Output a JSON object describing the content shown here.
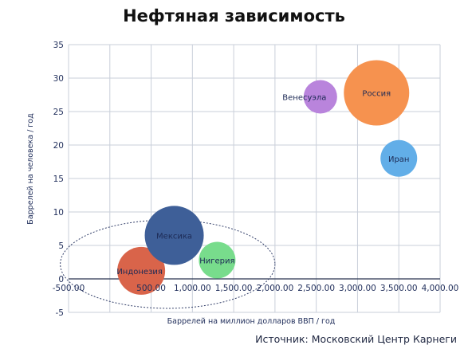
{
  "chart_data": {
    "type": "scatter",
    "title": "Нефтяная зависимость",
    "xlabel": "Баррелей на миллион долларов ВВП / год",
    "ylabel": "Баррелей на человека / год",
    "xlim": [
      -500,
      4000
    ],
    "ylim": [
      -5,
      35
    ],
    "x_ticks": [
      "-500.00",
      "500.00",
      "1,000.00",
      "1,500.00",
      "2,000.00",
      "2,500.00",
      "3,000.00",
      "3,500.00",
      "4,000.00"
    ],
    "x_tick_values": [
      -500,
      500,
      1000,
      1500,
      2000,
      2500,
      3000,
      3500,
      4000
    ],
    "y_ticks": [
      "-5",
      "0",
      "5",
      "10",
      "15",
      "20",
      "25",
      "30",
      "35"
    ],
    "y_tick_values": [
      -5,
      0,
      5,
      10,
      15,
      20,
      25,
      30,
      35
    ],
    "grid": true,
    "points": [
      {
        "label": "Индонезия",
        "x": 380,
        "y": 1.2,
        "size": 30,
        "color": "#d9644a"
      },
      {
        "label": "Мексика",
        "x": 780,
        "y": 6.5,
        "size": 37,
        "color": "#3e5f98"
      },
      {
        "label": "Нигерия",
        "x": 1300,
        "y": 2.8,
        "size": 23,
        "color": "#78dc8c"
      },
      {
        "label": "Венесуэла",
        "x": 2550,
        "y": 27.2,
        "size": 21,
        "color": "#b984dc"
      },
      {
        "label": "Россия",
        "x": 3230,
        "y": 27.8,
        "size": 41,
        "color": "#f6924f"
      },
      {
        "label": "Иран",
        "x": 3500,
        "y": 18,
        "size": 23,
        "color": "#62aee8"
      }
    ],
    "group_ellipse": {
      "x_center": 700,
      "y_center": 2.2,
      "x_radius": 1300,
      "y_radius": 6.6
    }
  },
  "source": "Источник: Московский Центр Карнеги"
}
